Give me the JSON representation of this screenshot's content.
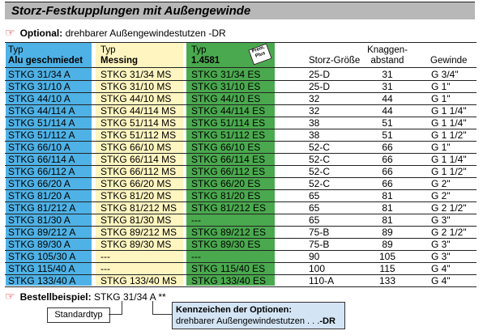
{
  "title": "Storz-Festkupplungen mit Außengewinde",
  "option": {
    "label": "Optional:",
    "text": "drehbarer Außengewindestutzen -DR"
  },
  "headers": {
    "alu_top": "Typ",
    "alu_bottom": "Alu geschmiedet",
    "messing_top": "Typ",
    "messing_bottom": "Messing",
    "es_top": "Typ",
    "es_bottom": "1.4581",
    "storz": "Storz-Größe",
    "knaggen_top": "Knaggen-",
    "knaggen_bottom": "abstand",
    "gewinde": "Gewinde"
  },
  "badge": "Prem. Plus",
  "rows": [
    {
      "alu": "STKG 31/34 A",
      "messing": "STKG 31/34 MS",
      "es": "STKG 31/34 ES",
      "storz": "25-D",
      "knaggen": "31",
      "gewinde": "G 3/4\""
    },
    {
      "alu": "STKG 31/10 A",
      "messing": "STKG 31/10 MS",
      "es": "STKG 31/10 ES",
      "storz": "25-D",
      "knaggen": "31",
      "gewinde": "G 1\""
    },
    {
      "alu": "STKG 44/10 A",
      "messing": "STKG 44/10 MS",
      "es": "STKG 44/10 ES",
      "storz": "32",
      "knaggen": "44",
      "gewinde": "G 1\""
    },
    {
      "alu": "STKG 44/114 A",
      "messing": "STKG 44/114 MS",
      "es": "STKG 44/114 ES",
      "storz": "32",
      "knaggen": "44",
      "gewinde": "G 1 1/4\""
    },
    {
      "alu": "STKG 51/114 A",
      "messing": "STKG 51/114 MS",
      "es": "STKG 51/114 ES",
      "storz": "38",
      "knaggen": "51",
      "gewinde": "G 1 1/4\""
    },
    {
      "alu": "STKG 51/112 A",
      "messing": "STKG 51/112 MS",
      "es": "STKG 51/112 ES",
      "storz": "38",
      "knaggen": "51",
      "gewinde": "G 1 1/2\""
    },
    {
      "alu": "STKG 66/10 A",
      "messing": "STKG 66/10 MS",
      "es": "STKG 66/10 ES",
      "storz": "52-C",
      "knaggen": "66",
      "gewinde": "G 1\""
    },
    {
      "alu": "STKG 66/114 A",
      "messing": "STKG 66/114 MS",
      "es": "STKG 66/114 ES",
      "storz": "52-C",
      "knaggen": "66",
      "gewinde": "G 1 1/4\""
    },
    {
      "alu": "STKG 66/112 A",
      "messing": "STKG 66/112 MS",
      "es": "STKG 66/112 ES",
      "storz": "52-C",
      "knaggen": "66",
      "gewinde": "G 1 1/2\""
    },
    {
      "alu": "STKG 66/20 A",
      "messing": "STKG 66/20 MS",
      "es": "STKG 66/20 ES",
      "storz": "52-C",
      "knaggen": "66",
      "gewinde": "G 2\""
    },
    {
      "alu": "STKG 81/20 A",
      "messing": "STKG 81/20 MS",
      "es": "STKG 81/20 ES",
      "storz": "65",
      "knaggen": "81",
      "gewinde": "G 2\""
    },
    {
      "alu": "STKG 81/212 A",
      "messing": "STKG 81/212 MS",
      "es": "STKG 81/212 ES",
      "storz": "65",
      "knaggen": "81",
      "gewinde": "G 2 1/2\""
    },
    {
      "alu": "STKG 81/30 A",
      "messing": "STKG 81/30 MS",
      "es": "---",
      "storz": "65",
      "knaggen": "81",
      "gewinde": "G 3\""
    },
    {
      "alu": "STKG 89/212 A",
      "messing": "STKG 89/212 MS",
      "es": "STKG 89/212 ES",
      "storz": "75-B",
      "knaggen": "89",
      "gewinde": "G 2 1/2\""
    },
    {
      "alu": "STKG 89/30 A",
      "messing": "STKG 89/30 MS",
      "es": "STKG 89/30 ES",
      "storz": "75-B",
      "knaggen": "89",
      "gewinde": "G 3\""
    },
    {
      "alu": "STKG 105/30 A",
      "messing": "---",
      "es": "---",
      "storz": "90",
      "knaggen": "105",
      "gewinde": "G 3\""
    },
    {
      "alu": "STKG 115/40 A",
      "messing": "---",
      "es": "STKG 115/40 ES",
      "storz": "100",
      "knaggen": "115",
      "gewinde": "G 4\""
    },
    {
      "alu": "STKG 133/40 A",
      "messing": "STKG 133/40 MS",
      "es": "STKG 133/40 ES",
      "storz": "110-A",
      "knaggen": "133",
      "gewinde": "G 4\""
    }
  ],
  "example": {
    "label": "Bestellbeispiel:",
    "text": "STKG 31/34 A **"
  },
  "standard_label": "Standardtyp",
  "options_box": {
    "title": "Kennzeichen der Optionen:",
    "text": "drehbarer Außengewindestutzen . . .",
    "code": "-DR"
  },
  "colors": {
    "alu": "#4fb2e6",
    "messing": "#fff5c0",
    "es": "#4aa94e",
    "title_bar": "#b8b8b8",
    "options_box": "#d3e4f4",
    "hand": "#d9262c"
  },
  "icons": [
    "pointing-hand-icon"
  ]
}
